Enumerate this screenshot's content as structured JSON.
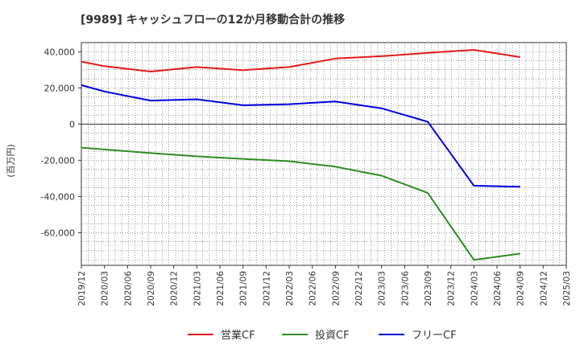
{
  "chart_data": {
    "type": "line",
    "title": "[9989]  キャッシュフローの12か月移動合計の推移",
    "ylabel": "(百万円)",
    "xlabel": "",
    "ylim": [
      -78000,
      45000
    ],
    "yticks": [
      40000,
      20000,
      0,
      -20000,
      -40000,
      -60000
    ],
    "ytick_labels": [
      "40,000",
      "20,000",
      "0",
      "-20,000",
      "-40,000",
      "-60,000"
    ],
    "x_tick_labels": [
      "2019/12",
      "2020/03",
      "2020/06",
      "2020/09",
      "2020/12",
      "2021/03",
      "2021/06",
      "2021/09",
      "2021/12",
      "2022/03",
      "2022/06",
      "2022/09",
      "2022/12",
      "2023/03",
      "2023/06",
      "2023/09",
      "2023/12",
      "2024/03",
      "2024/06",
      "2024/09",
      "2024/12",
      "2025/03"
    ],
    "grid": true,
    "legend_position": "bottom",
    "series": [
      {
        "name": "営業CF",
        "color": "#e31a1c",
        "x": [
          "2019/12",
          "2020/03",
          "2020/09",
          "2021/03",
          "2021/09",
          "2022/03",
          "2022/09",
          "2023/03",
          "2023/09",
          "2024/03",
          "2024/09"
        ],
        "values": [
          34500,
          32000,
          29000,
          31500,
          29800,
          31500,
          36200,
          37500,
          39300,
          41000,
          37000
        ]
      },
      {
        "name": "投資CF",
        "color": "#2e8b22",
        "x": [
          "2019/12",
          "2020/03",
          "2020/09",
          "2021/03",
          "2021/09",
          "2022/03",
          "2022/09",
          "2023/03",
          "2023/09",
          "2024/03",
          "2024/09"
        ],
        "values": [
          -13000,
          -14000,
          -16000,
          -17800,
          -19200,
          -20500,
          -23500,
          -28500,
          -38000,
          -75000,
          -71500
        ]
      },
      {
        "name": "フリーCF",
        "color": "#0000dd",
        "x": [
          "2019/12",
          "2020/03",
          "2020/09",
          "2021/03",
          "2021/09",
          "2022/03",
          "2022/09",
          "2023/03",
          "2023/09",
          "2024/03",
          "2024/09"
        ],
        "values": [
          21500,
          18000,
          13000,
          13700,
          10400,
          11000,
          12500,
          8700,
          1300,
          -34000,
          -34600
        ]
      }
    ]
  }
}
